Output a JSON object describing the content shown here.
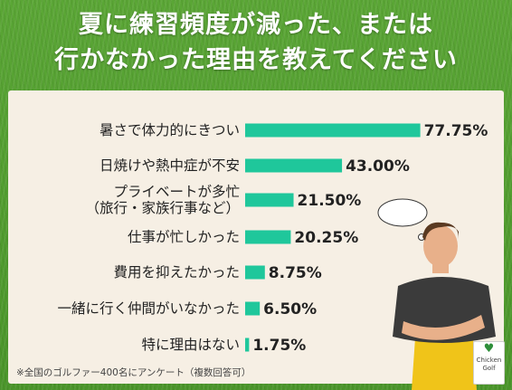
{
  "title_line1": "夏に練習頻度が減った、または",
  "title_line2": "行かなかった理由を教えてください",
  "footnote": "※全国のゴルファー400名にアンケート（複数回答可）",
  "logo_text": "Chicken Golf",
  "colors": {
    "bar": "#1fc79b",
    "panel": "#f6efe4",
    "background": "#4e9a2e"
  },
  "chart_data": {
    "type": "bar",
    "orientation": "horizontal",
    "title": "夏に練習頻度が減った、または行かなかった理由を教えてください",
    "categories": [
      [
        "暑さで体力的にきつい"
      ],
      [
        "日焼けや熱中症が不安"
      ],
      [
        "プライベートが多忙",
        "（旅行・家族行事など）"
      ],
      [
        "仕事が忙しかった"
      ],
      [
        "費用を抑えたかった"
      ],
      [
        "一緒に行く仲間がいなかった"
      ],
      [
        "特に理由はない"
      ]
    ],
    "values": [
      77.75,
      43.0,
      21.5,
      20.25,
      8.75,
      6.5,
      1.75
    ],
    "value_labels": [
      "77.75%",
      "43.00%",
      "21.50%",
      "20.25%",
      "8.75%",
      "6.50%",
      "1.75%"
    ],
    "unit": "%",
    "xlim": [
      0,
      100
    ],
    "grid": false,
    "legend": "none"
  }
}
